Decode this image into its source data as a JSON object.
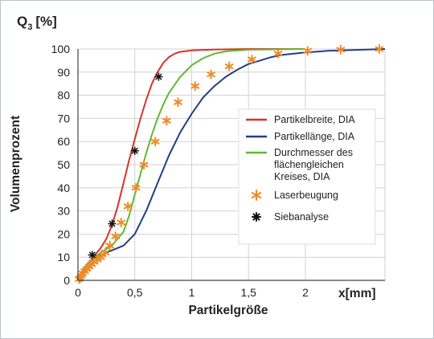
{
  "chart_data": {
    "type": "line",
    "title": "",
    "ylabel_symbol": "Q",
    "ylabel_symbol_sub": "3",
    "ylabel_unit": "[%]",
    "ylabel": "Volumenprozent",
    "xlabel": "Partikelgröße",
    "xlabel_unit": "x[mm]",
    "xlim": [
      0,
      2.7
    ],
    "ylim": [
      0,
      100
    ],
    "grid": true,
    "legend_position": "right",
    "x_ticks": [
      {
        "value": 0,
        "label": "0"
      },
      {
        "value": 0.5,
        "label": "0,5"
      },
      {
        "value": 1,
        "label": "1"
      },
      {
        "value": 1.5,
        "label": "1,5"
      },
      {
        "value": 2,
        "label": "2"
      }
    ],
    "y_ticks": [
      0,
      10,
      20,
      30,
      40,
      50,
      60,
      70,
      80,
      90,
      100
    ],
    "series": [
      {
        "name": "Partikelbreite, DIA",
        "kind": "line",
        "color": "#d7332a",
        "points": [
          [
            0,
            0
          ],
          [
            0.02,
            2
          ],
          [
            0.05,
            5
          ],
          [
            0.1,
            8
          ],
          [
            0.15,
            11
          ],
          [
            0.2,
            14
          ],
          [
            0.25,
            18
          ],
          [
            0.3,
            24
          ],
          [
            0.35,
            32
          ],
          [
            0.4,
            42
          ],
          [
            0.45,
            52
          ],
          [
            0.5,
            61
          ],
          [
            0.55,
            70
          ],
          [
            0.6,
            78
          ],
          [
            0.65,
            85
          ],
          [
            0.7,
            90
          ],
          [
            0.75,
            94
          ],
          [
            0.8,
            96.5
          ],
          [
            0.85,
            98
          ],
          [
            0.9,
            98.8
          ],
          [
            1.0,
            99.4
          ],
          [
            1.2,
            99.8
          ],
          [
            1.5,
            100
          ],
          [
            2.0,
            100
          ]
        ]
      },
      {
        "name": "Partikellänge, DIA",
        "kind": "line",
        "color": "#223f87",
        "points": [
          [
            0,
            0
          ],
          [
            0.02,
            2
          ],
          [
            0.05,
            5
          ],
          [
            0.1,
            8
          ],
          [
            0.2,
            11
          ],
          [
            0.3,
            13
          ],
          [
            0.4,
            15
          ],
          [
            0.5,
            20
          ],
          [
            0.6,
            30
          ],
          [
            0.7,
            42
          ],
          [
            0.8,
            54
          ],
          [
            0.9,
            64
          ],
          [
            1.0,
            72
          ],
          [
            1.1,
            79
          ],
          [
            1.2,
            84
          ],
          [
            1.3,
            88
          ],
          [
            1.4,
            91
          ],
          [
            1.5,
            93.5
          ],
          [
            1.6,
            95
          ],
          [
            1.7,
            96.5
          ],
          [
            1.8,
            97.5
          ],
          [
            2.0,
            98.5
          ],
          [
            2.2,
            99.2
          ],
          [
            2.5,
            99.7
          ],
          [
            2.7,
            100
          ]
        ]
      },
      {
        "name": "Durchmesser des flächengleichen Kreises, DIA",
        "kind": "line",
        "color": "#5dbb2c",
        "points": [
          [
            0,
            0
          ],
          [
            0.02,
            2
          ],
          [
            0.05,
            5
          ],
          [
            0.1,
            8
          ],
          [
            0.2,
            12
          ],
          [
            0.3,
            15
          ],
          [
            0.4,
            21
          ],
          [
            0.45,
            28
          ],
          [
            0.5,
            37
          ],
          [
            0.55,
            46
          ],
          [
            0.6,
            55
          ],
          [
            0.65,
            63
          ],
          [
            0.7,
            70
          ],
          [
            0.75,
            76
          ],
          [
            0.8,
            81
          ],
          [
            0.9,
            88
          ],
          [
            1.0,
            93
          ],
          [
            1.1,
            96
          ],
          [
            1.2,
            98
          ],
          [
            1.3,
            99
          ],
          [
            1.5,
            99.7
          ],
          [
            2.0,
            100
          ]
        ]
      },
      {
        "name": "Laserbeugung",
        "kind": "marker",
        "color": "#f08a24",
        "points": [
          [
            0.01,
            0.5
          ],
          [
            0.02,
            1
          ],
          [
            0.03,
            2
          ],
          [
            0.04,
            3
          ],
          [
            0.06,
            4
          ],
          [
            0.08,
            5
          ],
          [
            0.1,
            6
          ],
          [
            0.12,
            7
          ],
          [
            0.14,
            8
          ],
          [
            0.17,
            9
          ],
          [
            0.2,
            10
          ],
          [
            0.24,
            12
          ],
          [
            0.28,
            15
          ],
          [
            0.33,
            19
          ],
          [
            0.38,
            25
          ],
          [
            0.44,
            32
          ],
          [
            0.51,
            40
          ],
          [
            0.58,
            50
          ],
          [
            0.68,
            60
          ],
          [
            0.78,
            69
          ],
          [
            0.88,
            77
          ],
          [
            1.03,
            84
          ],
          [
            1.17,
            89
          ],
          [
            1.33,
            92.5
          ],
          [
            1.53,
            95.5
          ],
          [
            1.76,
            98
          ],
          [
            2.02,
            99.2
          ],
          [
            2.31,
            99.7
          ],
          [
            2.65,
            100
          ]
        ]
      },
      {
        "name": "Siebanalyse",
        "kind": "marker",
        "color": "#111111",
        "points": [
          [
            0.125,
            11
          ],
          [
            0.3,
            24.5
          ],
          [
            0.5,
            56
          ],
          [
            0.71,
            88
          ]
        ]
      }
    ]
  }
}
